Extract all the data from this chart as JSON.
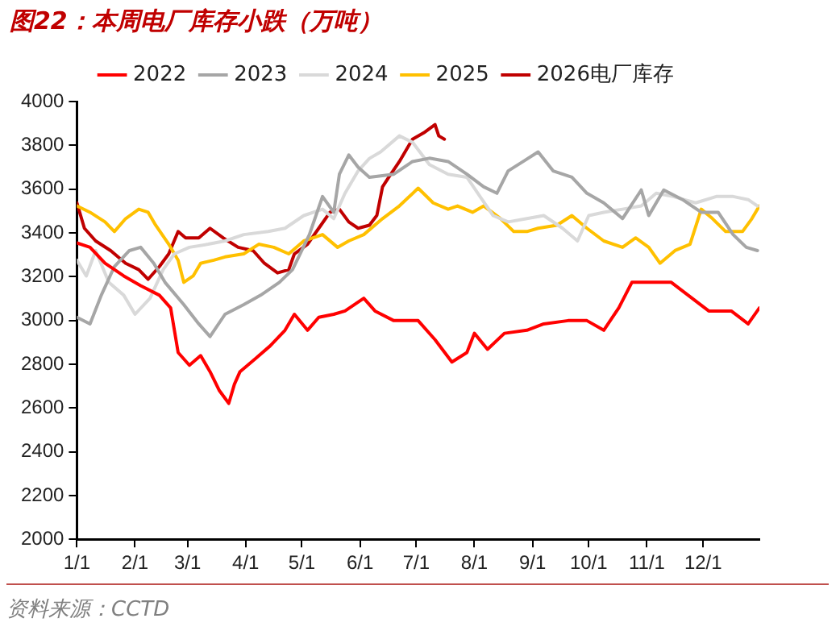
{
  "chart_data": {
    "type": "line",
    "title": "图22：本周电厂库存小跌（万吨）",
    "annotations": [
      "资料来源：CCTD"
    ],
    "xlim": [
      "--01-01",
      "--12-31"
    ],
    "xticks": [
      {
        "value": "--01-01",
        "label": "1/1"
      },
      {
        "value": "--02-01",
        "label": "2/1"
      },
      {
        "value": "--03-01",
        "label": "3/1"
      },
      {
        "value": "--04-01",
        "label": "4/1"
      },
      {
        "value": "--05-01",
        "label": "5/1"
      },
      {
        "value": "--06-01",
        "label": "6/1"
      },
      {
        "value": "--07-01",
        "label": "7/1"
      },
      {
        "value": "--08-01",
        "label": "8/1"
      },
      {
        "value": "--09-01",
        "label": "9/1"
      },
      {
        "value": "--10-01",
        "label": "10/1"
      },
      {
        "value": "--11-01",
        "label": "11/1"
      },
      {
        "value": "--12-01",
        "label": "12/1"
      }
    ],
    "ylim": [
      2000,
      4000
    ],
    "yticks": [
      2000,
      2200,
      2400,
      2600,
      2800,
      3000,
      3200,
      3400,
      3600,
      3800,
      4000
    ],
    "grid": false,
    "legend": "top",
    "marker": "none",
    "line_style": "solid",
    "series": [
      {
        "name": "2022",
        "color": "#ff0000",
        "x": [
          "--01-01",
          "--01-08",
          "--01-16",
          "--01-26",
          "--02-04",
          "--02-14",
          "--02-20",
          "--02-24",
          "--03-02",
          "--03-08",
          "--03-13",
          "--03-18",
          "--03-23",
          "--03-26",
          "--03-29",
          "--04-06",
          "--04-14",
          "--04-22",
          "--04-27",
          "--05-04",
          "--05-10",
          "--05-18",
          "--05-24",
          "--06-03",
          "--06-09",
          "--06-19",
          "--07-02",
          "--07-11",
          "--07-20",
          "--07-28",
          "--08-01",
          "--08-08",
          "--08-17",
          "--08-29",
          "--09-07",
          "--09-20",
          "--09-30",
          "--10-09",
          "--10-17",
          "--10-24",
          "--11-02",
          "--11-14",
          "--11-23",
          "--12-04",
          "--12-16",
          "--12-25",
          "--12-31"
        ],
        "values": [
          3354,
          3334,
          3261,
          3203,
          3159,
          3115,
          3057,
          2853,
          2795,
          2839,
          2766,
          2679,
          2621,
          2708,
          2766,
          2824,
          2883,
          2955,
          3028,
          2955,
          3014,
          3028,
          3043,
          3101,
          3043,
          2999,
          2999,
          2912,
          2810,
          2853,
          2941,
          2868,
          2941,
          2955,
          2984,
          2999,
          2999,
          2955,
          3057,
          3174,
          3174,
          3174,
          3115,
          3043,
          3043,
          2984,
          3057
        ]
      },
      {
        "name": "2023",
        "color": "#a6a6a6",
        "x": [
          "--01-01",
          "--01-08",
          "--01-14",
          "--01-21",
          "--01-29",
          "--02-04",
          "--02-11",
          "--02-17",
          "--02-27",
          "--03-07",
          "--03-13",
          "--03-21",
          "--03-31",
          "--04-09",
          "--04-19",
          "--04-26",
          "--05-05",
          "--05-12",
          "--05-18",
          "--05-21",
          "--05-26",
          "--05-31",
          "--06-06",
          "--06-19",
          "--06-29",
          "--07-08",
          "--07-18",
          "--07-28",
          "--08-06",
          "--08-13",
          "--08-19",
          "--08-27",
          "--09-04",
          "--09-12",
          "--09-22",
          "--09-30",
          "--10-09",
          "--10-19",
          "--10-29",
          "--11-02",
          "--11-10",
          "--11-20",
          "--11-30",
          "--12-09",
          "--12-17",
          "--12-24",
          "--12-30"
        ],
        "values": [
          3014,
          2984,
          3115,
          3246,
          3319,
          3334,
          3261,
          3174,
          3072,
          2984,
          2926,
          3028,
          3072,
          3115,
          3174,
          3232,
          3392,
          3566,
          3494,
          3668,
          3756,
          3700,
          3654,
          3668,
          3726,
          3741,
          3726,
          3668,
          3610,
          3581,
          3683,
          3726,
          3770,
          3683,
          3654,
          3581,
          3537,
          3465,
          3596,
          3479,
          3596,
          3552,
          3494,
          3494,
          3392,
          3334,
          3319
        ]
      },
      {
        "name": "2024",
        "color": "#d9d9d9",
        "x": [
          "--01-01",
          "--01-06",
          "--01-11",
          "--01-18",
          "--01-26",
          "--02-01",
          "--02-09",
          "--02-16",
          "--02-22",
          "--03-02",
          "--03-12",
          "--03-21",
          "--03-31",
          "--04-13",
          "--04-22",
          "--05-02",
          "--05-12",
          "--05-18",
          "--05-24",
          "--05-31",
          "--06-06",
          "--06-12",
          "--06-22",
          "--06-29",
          "--07-08",
          "--07-18",
          "--07-28",
          "--08-04",
          "--08-11",
          "--08-19",
          "--08-29",
          "--09-07",
          "--09-17",
          "--09-25",
          "--10-01",
          "--10-09",
          "--10-19",
          "--10-29",
          "--11-06",
          "--11-15",
          "--11-27",
          "--12-08",
          "--12-17",
          "--12-25",
          "--12-30"
        ],
        "values": [
          3275,
          3203,
          3319,
          3174,
          3115,
          3028,
          3101,
          3232,
          3304,
          3334,
          3348,
          3363,
          3392,
          3406,
          3421,
          3479,
          3508,
          3465,
          3581,
          3683,
          3740,
          3770,
          3843,
          3814,
          3712,
          3668,
          3654,
          3566,
          3479,
          3450,
          3465,
          3479,
          3421,
          3363,
          3479,
          3494,
          3508,
          3523,
          3581,
          3566,
          3537,
          3566,
          3566,
          3552,
          3523
        ]
      },
      {
        "name": "2025",
        "color": "#ffc000",
        "x": [
          "--01-01",
          "--01-08",
          "--01-16",
          "--01-21",
          "--01-27",
          "--02-03",
          "--02-08",
          "--02-12",
          "--02-19",
          "--02-24",
          "--02-27",
          "--03-04",
          "--03-08",
          "--03-15",
          "--03-21",
          "--03-31",
          "--04-08",
          "--04-16",
          "--04-24",
          "--05-02",
          "--05-12",
          "--05-20",
          "--05-26",
          "--06-03",
          "--06-13",
          "--06-22",
          "--07-02",
          "--07-10",
          "--07-18",
          "--07-23",
          "--07-31",
          "--08-06",
          "--08-15",
          "--08-22",
          "--08-29",
          "--09-04",
          "--09-14",
          "--09-22",
          "--09-30",
          "--10-09",
          "--10-19",
          "--10-26",
          "--11-02",
          "--11-08",
          "--11-16",
          "--11-24",
          "--11-30",
          "--12-06",
          "--12-13",
          "--12-22",
          "--12-27",
          "--12-31"
        ],
        "values": [
          3523,
          3494,
          3450,
          3406,
          3465,
          3508,
          3494,
          3435,
          3348,
          3275,
          3174,
          3203,
          3261,
          3275,
          3290,
          3304,
          3348,
          3334,
          3304,
          3363,
          3392,
          3334,
          3363,
          3392,
          3465,
          3523,
          3604,
          3537,
          3508,
          3523,
          3494,
          3523,
          3465,
          3406,
          3406,
          3421,
          3435,
          3479,
          3421,
          3363,
          3334,
          3377,
          3334,
          3261,
          3319,
          3348,
          3508,
          3465,
          3406,
          3406,
          3465,
          3523
        ]
      },
      {
        "name": "2026电厂库存",
        "color": "#c00000",
        "x": [
          "--01-01",
          "--01-05",
          "--01-11",
          "--01-19",
          "--01-27",
          "--02-03",
          "--02-08",
          "--02-14",
          "--02-19",
          "--02-24",
          "--02-28",
          "--03-07",
          "--03-13",
          "--03-20",
          "--03-28",
          "--04-05",
          "--04-11",
          "--04-18",
          "--04-24",
          "--04-27",
          "--05-04",
          "--05-10",
          "--05-16",
          "--05-21",
          "--05-26",
          "--05-31",
          "--06-06",
          "--06-10",
          "--06-13",
          "--06-16",
          "--06-22",
          "--06-29",
          "--07-05",
          "--07-11",
          "--07-13",
          "--07-16"
        ],
        "values": [
          3537,
          3421,
          3363,
          3319,
          3261,
          3232,
          3188,
          3246,
          3304,
          3406,
          3377,
          3377,
          3421,
          3377,
          3334,
          3319,
          3261,
          3217,
          3232,
          3304,
          3348,
          3421,
          3494,
          3508,
          3450,
          3421,
          3435,
          3480,
          3610,
          3650,
          3726,
          3828,
          3857,
          3895,
          3843,
          3828
        ]
      }
    ]
  }
}
